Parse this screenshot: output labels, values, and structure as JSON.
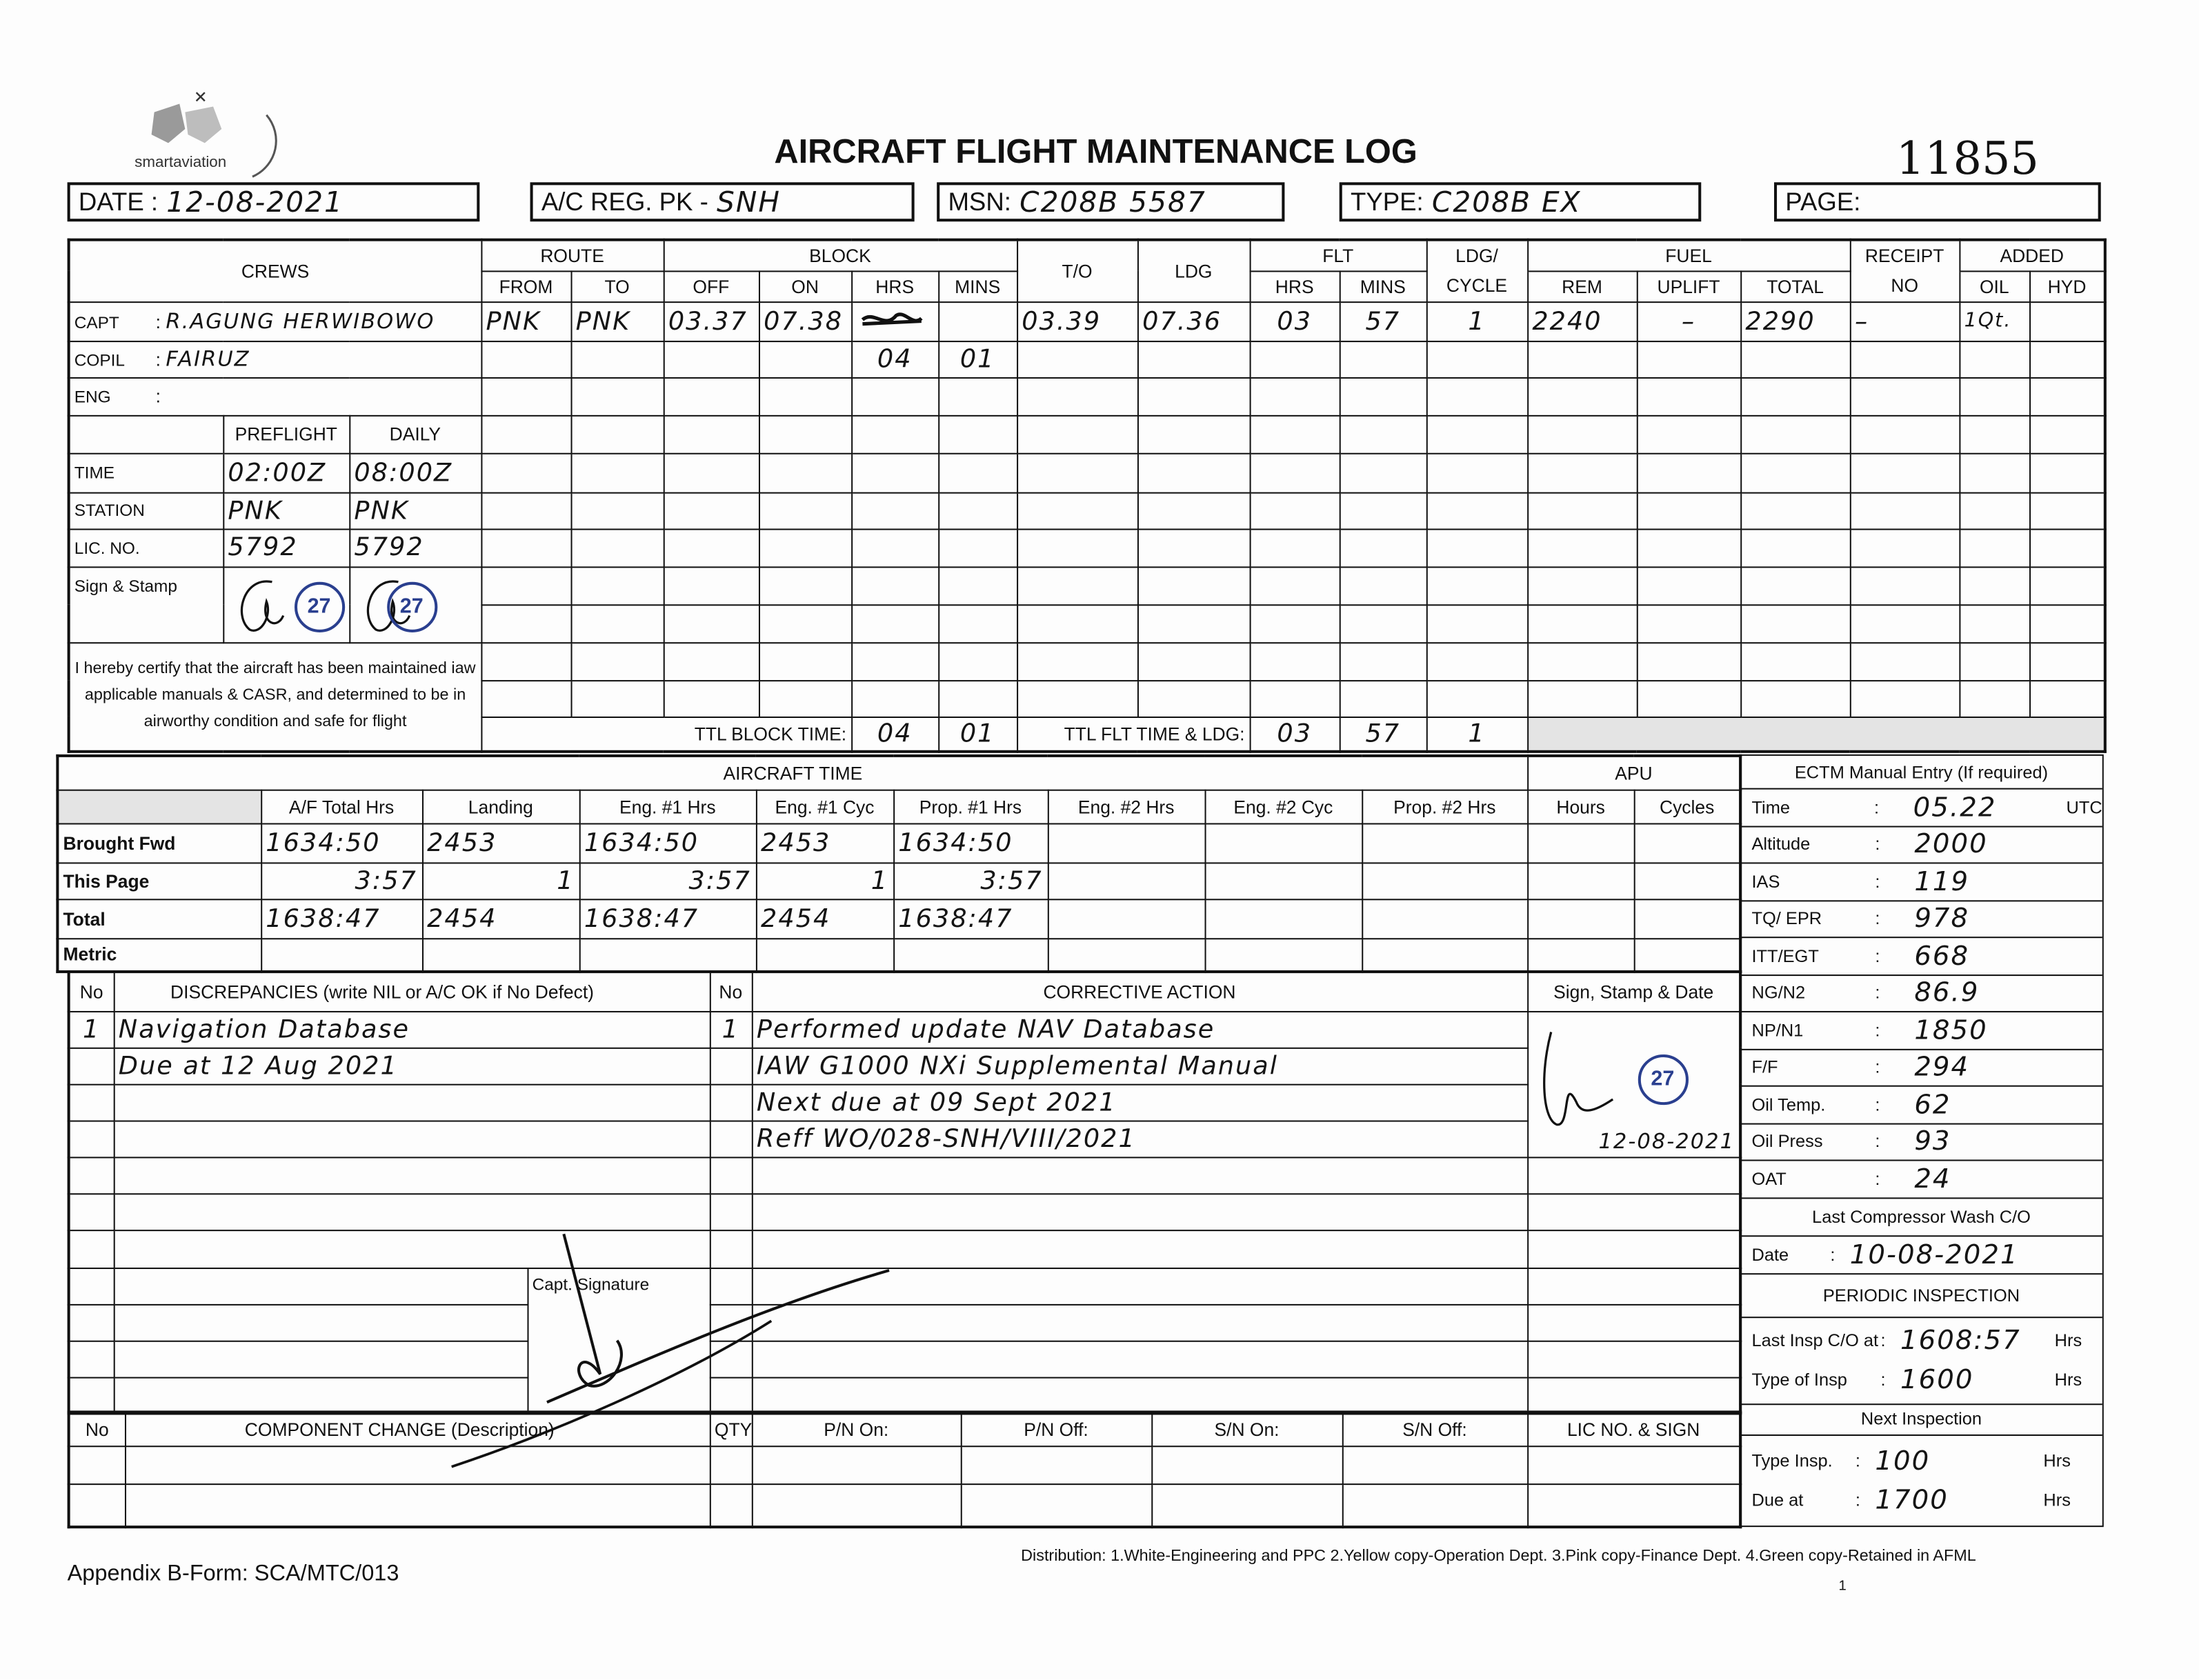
{
  "logo": {
    "text": "smartaviation"
  },
  "title": "AIRCRAFT FLIGHT MAINTENANCE LOG",
  "form_number": "11855",
  "header": {
    "date_label": "DATE :",
    "date": "12-08-2021",
    "reg_label": "A/C REG. PK -",
    "reg": "SNH",
    "msn_label": "MSN:",
    "msn": "C208B 5587",
    "type_label": "TYPE:",
    "type": "C208B EX",
    "page_label": "PAGE:"
  },
  "flight_table": {
    "headers": {
      "crews": "CREWS",
      "route": "ROUTE",
      "block": "BLOCK",
      "to": "T/O",
      "ldg": "LDG",
      "flt": "FLT",
      "ldg_cycle_1": "LDG/",
      "ldg_cycle_2": "CYCLE",
      "fuel": "FUEL",
      "receipt_1": "RECEIPT",
      "receipt_2": "NO",
      "added": "ADDED",
      "from": "FROM",
      "route_to": "TO",
      "off": "OFF",
      "on": "ON",
      "hrs": "HRS",
      "mins": "MINS",
      "flt_hrs": "HRS",
      "flt_mins": "MINS",
      "rem": "REM",
      "uplift": "UPLIFT",
      "total": "TOTAL",
      "oil": "OIL",
      "hyd": "HYD"
    },
    "crews": [
      {
        "role": "CAPT",
        "name": "R.AGUNG HERWIBOWO"
      },
      {
        "role": "COPIL",
        "name": "FAIRUZ"
      },
      {
        "role": "ENG",
        "name": ""
      }
    ],
    "leg": {
      "from": "PNK",
      "to": "PNK",
      "off": "03.37",
      "on": "07.38",
      "takeoff": "03.39",
      "landing": "07.36",
      "flt_hrs": "03",
      "flt_mins": "57",
      "cycle": "1",
      "fuel_rem": "2240",
      "fuel_uplift": "–",
      "fuel_total": "2290",
      "receipt_no": "–",
      "oil_added": "1Qt."
    },
    "block_correction": {
      "hrs": "04",
      "mins": "01"
    },
    "preflight": {
      "preflight_label": "PREFLIGHT",
      "daily_label": "DAILY",
      "rows": [
        {
          "label": "TIME",
          "preflight": "02:00Z",
          "daily": "08:00Z"
        },
        {
          "label": "STATION",
          "preflight": "PNK",
          "daily": "PNK"
        },
        {
          "label": "LIC. NO.",
          "preflight": "5792",
          "daily": "5792"
        }
      ],
      "sign_label": "Sign & Stamp",
      "stamp_number": "27"
    },
    "certification": "I hereby certify that the aircraft has been maintained iaw applicable manuals & CASR, and determined to be in airworthy condition and safe for flight",
    "totals": {
      "ttl_block_label": "TTL BLOCK TIME:",
      "block_hrs": "04",
      "block_mins": "01",
      "ttl_flt_label": "TTL FLT TIME & LDG:",
      "flt_hrs": "03",
      "flt_mins": "57",
      "ldg": "1"
    }
  },
  "aircraft_time": {
    "title": "AIRCRAFT TIME",
    "apu_title": "APU",
    "columns": [
      "A/F Total Hrs",
      "Landing",
      "Eng. #1 Hrs",
      "Eng. #1 Cyc",
      "Prop. #1 Hrs",
      "Eng. #2 Hrs",
      "Eng. #2 Cyc",
      "Prop. #2 Hrs",
      "Hours",
      "Cycles"
    ],
    "rows": [
      {
        "label": "Brought Fwd",
        "values": [
          "1634:50",
          "2453",
          "1634:50",
          "2453",
          "1634:50"
        ]
      },
      {
        "label": "This Page",
        "values": [
          "3:57",
          "1",
          "3:57",
          "1",
          "3:57"
        ]
      },
      {
        "label": "Total",
        "values": [
          "1638:47",
          "2454",
          "1638:47",
          "2454",
          "1638:47"
        ]
      },
      {
        "label": "Metric",
        "values": []
      }
    ]
  },
  "ectm": {
    "title": "ECTM Manual Entry (If required)",
    "rows": [
      {
        "label": "Time",
        "value": "05.22",
        "unit": "UTC"
      },
      {
        "label": "Altitude",
        "value": "2000"
      },
      {
        "label": "IAS",
        "value": "119"
      },
      {
        "label": "TQ/ EPR",
        "value": "978"
      },
      {
        "label": "ITT/EGT",
        "value": "668"
      },
      {
        "label": "NG/N2",
        "value": "86.9"
      },
      {
        "label": "NP/N1",
        "value": "1850"
      },
      {
        "label": "F/F",
        "value": "294"
      },
      {
        "label": "Oil Temp.",
        "value": "62"
      },
      {
        "label": "Oil Press",
        "value": "93"
      },
      {
        "label": "OAT",
        "value": "24"
      }
    ],
    "compressor_wash_title": "Last Compressor Wash C/O",
    "compressor_wash_label": "Date",
    "compressor_wash_date": "10-08-2021",
    "periodic_title": "PERIODIC INSPECTION",
    "last_insp_label": "Last Insp C/O at",
    "last_insp_value": "1608:57",
    "type_insp_label": "Type of Insp",
    "type_insp_value": "1600",
    "hrs_unit": "Hrs",
    "next_title": "Next Inspection",
    "next_type_label": "Type Insp.",
    "next_type_value": "100",
    "due_label": "Due at",
    "due_value": "1700"
  },
  "discrepancies": {
    "no_label": "No",
    "title": "DISCREPANCIES (write NIL or A/C OK if No Defect)",
    "corrective_title": "CORRECTIVE ACTION",
    "sign_title": "Sign, Stamp & Date",
    "item_no": "1",
    "discrepancy_lines": [
      "Navigation Database",
      "Due at 12 Aug 2021"
    ],
    "action_no": "1",
    "action_lines": [
      "Performed update NAV Database",
      "IAW G1000 NXi Supplemental Manual",
      "Next due at 09 Sept 2021",
      "Reff WO/028-SNH/VIII/2021"
    ],
    "sign_date": "12-08-2021",
    "stamp_number": "27",
    "capt_signature_label": "Capt. Signature"
  },
  "component_change": {
    "columns": [
      "No",
      "COMPONENT CHANGE (Description)",
      "QTY",
      "P/N On:",
      "P/N Off:",
      "S/N On:",
      "S/N Off:",
      "LIC NO. & SIGN"
    ]
  },
  "footer": {
    "form_ref": "Appendix B-Form: SCA/MTC/013",
    "distribution": "Distribution: 1.White-Engineering and PPC  2.Yellow copy-Operation Dept.  3.Pink copy-Finance Dept.  4.Green copy-Retained in AFML",
    "page_mark": "1"
  }
}
